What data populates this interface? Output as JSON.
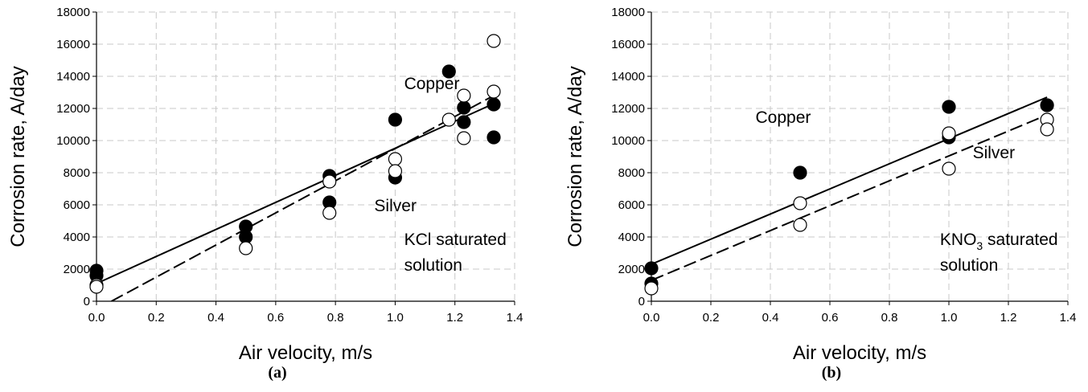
{
  "chart_data": [
    {
      "type": "scatter",
      "panel_label": "(a)",
      "xlabel": "Air velocity, m/s",
      "ylabel": "Corrosion rate, A/day",
      "xlim": [
        0.0,
        1.4
      ],
      "ylim": [
        0,
        18000
      ],
      "xticks": [
        "0.0",
        "0.2",
        "0.4",
        "0.6",
        "0.8",
        "1.0",
        "1.2",
        "1.4"
      ],
      "yticks": [
        "0",
        "2000",
        "4000",
        "6000",
        "8000",
        "10000",
        "12000",
        "14000",
        "16000",
        "18000"
      ],
      "grid": true,
      "annotations": [
        {
          "text": "Copper",
          "x": 1.03,
          "y": 13200
        },
        {
          "text": "Silver",
          "x": 0.93,
          "y": 5600
        },
        {
          "text": "KCl saturated",
          "x": 1.03,
          "y": 3500
        },
        {
          "text": "solution",
          "x": 1.03,
          "y": 1900
        }
      ],
      "series": [
        {
          "name": "Copper",
          "marker": "filled-circle",
          "points": [
            [
              0.0,
              1900
            ],
            [
              0.0,
              1600
            ],
            [
              0.5,
              4650
            ],
            [
              0.5,
              4000
            ],
            [
              0.78,
              7800
            ],
            [
              0.78,
              6150
            ],
            [
              1.0,
              11300
            ],
            [
              1.0,
              7700
            ],
            [
              1.18,
              14300
            ],
            [
              1.23,
              12050
            ],
            [
              1.23,
              11150
            ],
            [
              1.33,
              12250
            ],
            [
              1.33,
              10200
            ]
          ],
          "fit_line": {
            "style": "solid",
            "x": [
              0.0,
              1.33
            ],
            "y": [
              1100,
              12300
            ]
          }
        },
        {
          "name": "Silver",
          "marker": "open-circle",
          "points": [
            [
              0.0,
              1000
            ],
            [
              0.0,
              900
            ],
            [
              0.5,
              3300
            ],
            [
              0.78,
              7450
            ],
            [
              0.78,
              5500
            ],
            [
              1.0,
              8850
            ],
            [
              1.0,
              8100
            ],
            [
              1.18,
              11300
            ],
            [
              1.23,
              12800
            ],
            [
              1.23,
              10150
            ],
            [
              1.33,
              16200
            ],
            [
              1.33,
              13050
            ]
          ],
          "fit_line": {
            "style": "dashed",
            "x": [
              0.05,
              1.33
            ],
            "y": [
              0,
              12800
            ]
          }
        }
      ]
    },
    {
      "type": "scatter",
      "panel_label": "(b)",
      "xlabel": "Air velocity, m/s",
      "ylabel": "Corrosion rate, A/day",
      "xlim": [
        0.0,
        1.4
      ],
      "ylim": [
        0,
        18000
      ],
      "xticks": [
        "0.0",
        "0.2",
        "0.4",
        "0.6",
        "0.8",
        "1.0",
        "1.2",
        "1.4"
      ],
      "yticks": [
        "0",
        "2000",
        "4000",
        "6000",
        "8000",
        "10000",
        "12000",
        "14000",
        "16000",
        "18000"
      ],
      "grid": true,
      "annotations": [
        {
          "text": "Copper",
          "x": 0.35,
          "y": 11100
        },
        {
          "text": "Silver",
          "x": 1.08,
          "y": 8900
        },
        {
          "text": "KNO",
          "sub": "3",
          "rest": " saturated",
          "x": 0.97,
          "y": 3500
        },
        {
          "text": "solution",
          "x": 0.97,
          "y": 1900
        }
      ],
      "series": [
        {
          "name": "Copper",
          "marker": "filled-circle",
          "points": [
            [
              0.0,
              2050
            ],
            [
              0.0,
              1100
            ],
            [
              0.5,
              8000
            ],
            [
              1.0,
              12100
            ],
            [
              1.0,
              10200
            ],
            [
              1.33,
              12200
            ]
          ],
          "fit_line": {
            "style": "solid",
            "x": [
              0.0,
              1.33
            ],
            "y": [
              2300,
              12700
            ]
          }
        },
        {
          "name": "Silver",
          "marker": "open-circle",
          "points": [
            [
              0.0,
              800
            ],
            [
              0.5,
              6100
            ],
            [
              0.5,
              4750
            ],
            [
              1.0,
              10450
            ],
            [
              1.0,
              8250
            ],
            [
              1.33,
              11300
            ],
            [
              1.33,
              10700
            ]
          ],
          "fit_line": {
            "style": "dashed",
            "x": [
              0.0,
              1.33
            ],
            "y": [
              1300,
              11600
            ]
          }
        }
      ]
    }
  ]
}
